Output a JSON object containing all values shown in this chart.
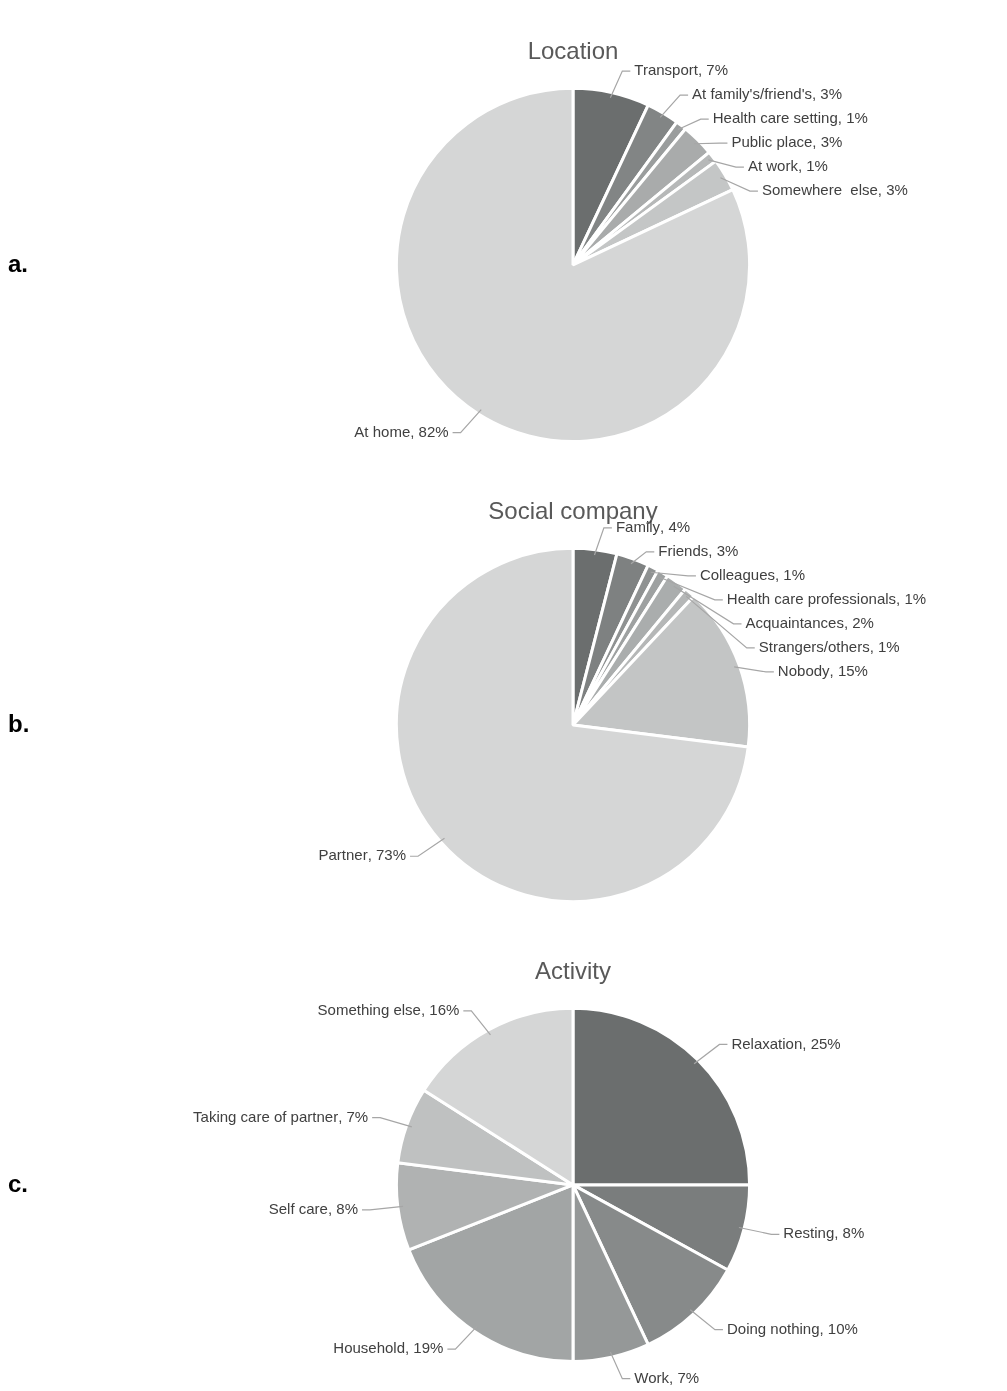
{
  "chart_data": [
    {
      "type": "pie",
      "title": "Location",
      "categories": [
        "Transport",
        "At family's/friend's",
        "Health care setting",
        "Public place",
        "At work",
        "Somewhere  else",
        "At home"
      ],
      "values": [
        7,
        3,
        1,
        3,
        1,
        3,
        82
      ],
      "colors": [
        "#6b6e6e",
        "#828585",
        "#9a9d9d",
        "#a9abab",
        "#b6b8b8",
        "#c4c6c6",
        "#d5d6d6"
      ],
      "value_labels": [
        ", 7%",
        ", 3%",
        ", 1%",
        ", 3%",
        ", 1%",
        ", 3%",
        ", 82%"
      ],
      "annotations": [
        "a."
      ]
    },
    {
      "type": "pie",
      "title": "Social company",
      "categories": [
        "Family",
        "Friends",
        "Colleagues",
        "Health care professionals",
        "Acquaintances",
        "Strangers/others",
        "Nobody",
        "Partner"
      ],
      "values": [
        4,
        3,
        1,
        1,
        2,
        1,
        15,
        73
      ],
      "colors": [
        "#6b6e6e",
        "#7e8181",
        "#8f9292",
        "#9ea1a1",
        "#aaadad",
        "#b5b7b7",
        "#c3c5c5",
        "#d5d6d6"
      ],
      "value_labels": [
        ", 4%",
        ", 3%",
        ", 1%",
        ", 1%",
        ", 2%",
        ", 1%",
        ", 15%",
        ", 73%"
      ],
      "annotations": [
        "b."
      ]
    },
    {
      "type": "pie",
      "title": "Activity",
      "categories": [
        "Relaxation",
        "Resting",
        "Doing nothing",
        "Work",
        "Household",
        "Self care",
        "Taking care of partner",
        "Something else"
      ],
      "values": [
        25,
        8,
        10,
        7,
        19,
        8,
        7,
        16
      ],
      "colors": [
        "#6b6e6e",
        "#7a7d7d",
        "#878a8a",
        "#959898",
        "#a2a5a5",
        "#b0b2b2",
        "#bfc1c1",
        "#d5d6d6"
      ],
      "value_labels": [
        ", 25%",
        ", 8%",
        ", 10%",
        ", 7%",
        ", 19%",
        ", 8%",
        ", 7%",
        ", 16%"
      ],
      "annotations": [
        "c."
      ]
    }
  ]
}
